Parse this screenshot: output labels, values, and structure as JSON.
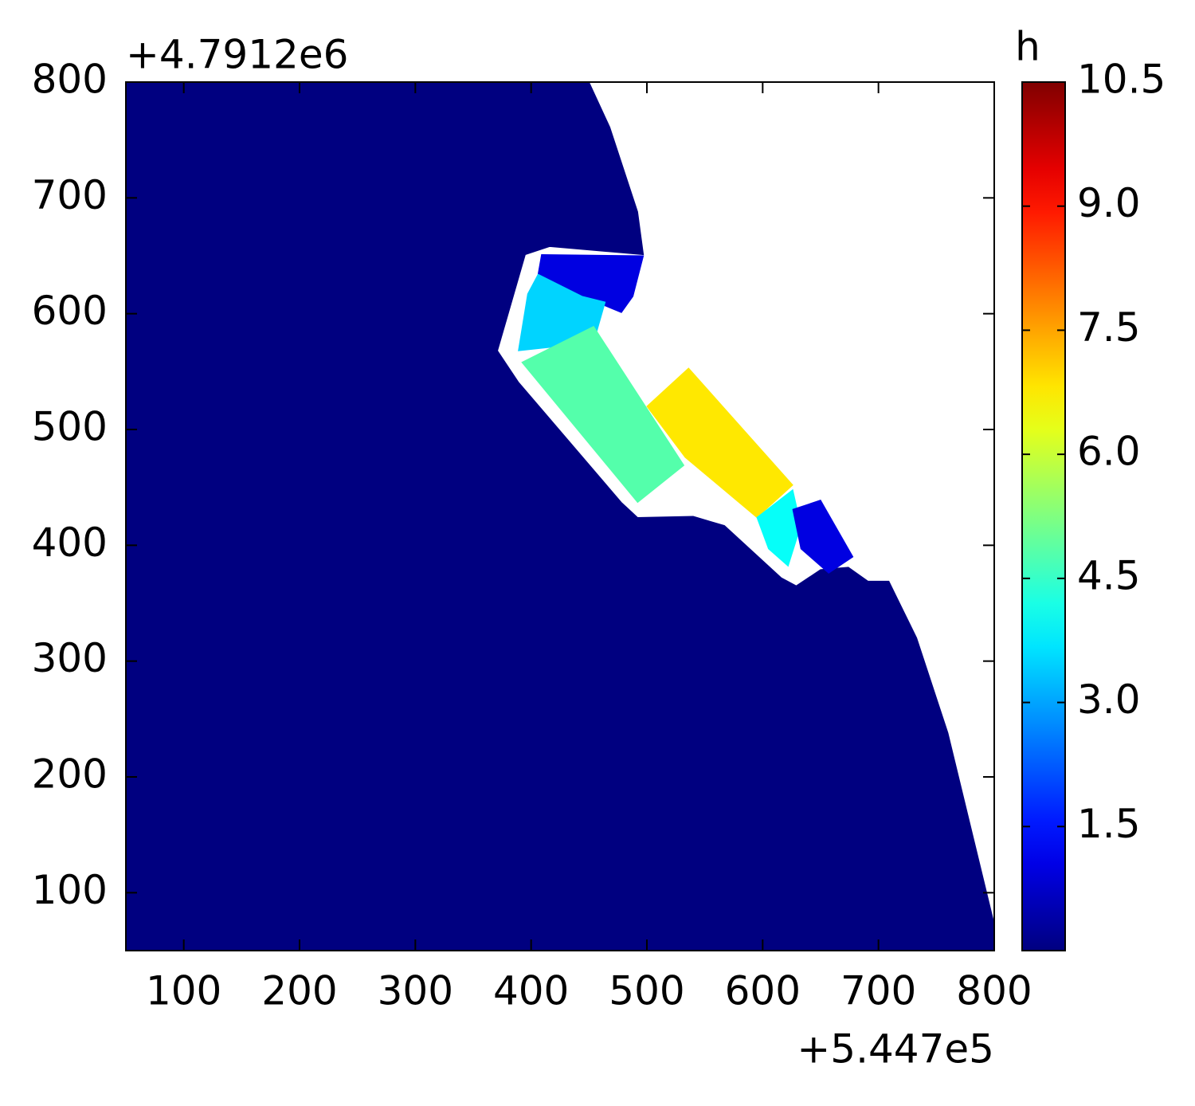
{
  "chart_data": {
    "type": "tripcolor",
    "colormap": "jet",
    "colorbar_label": "h",
    "clim": [
      0,
      10.5
    ],
    "cticks": [
      1.5,
      {
        "value": 3.0,
        "label": "3.0"
      },
      4.5,
      {
        "value": 6.0,
        "label": "6.0"
      },
      7.5,
      {
        "value": 9.0,
        "label": "9.0"
      },
      10.5
    ],
    "xlim": [
      50,
      800
    ],
    "ylim": [
      50,
      800
    ],
    "xticks": [
      100,
      200,
      300,
      400,
      500,
      600,
      700,
      800
    ],
    "yticks": [
      100,
      200,
      300,
      400,
      500,
      600,
      700,
      800
    ],
    "x_offset_label": "+5.447e5",
    "y_offset_label": "+4.7912e6",
    "regions": [
      {
        "value": 0.0,
        "points": [
          [
            50,
            800
          ],
          [
            450,
            800
          ],
          [
            468,
            761
          ],
          [
            492,
            688
          ],
          [
            497,
            651
          ],
          [
            416,
            658
          ],
          [
            395,
            651
          ],
          [
            371,
            568
          ],
          [
            389,
            541
          ],
          [
            478,
            437
          ],
          [
            492,
            424
          ],
          [
            540,
            425
          ],
          [
            567,
            417
          ],
          [
            616,
            372
          ],
          [
            629,
            365
          ],
          [
            650,
            379
          ],
          [
            674,
            381
          ],
          [
            691,
            369
          ],
          [
            709,
            369
          ],
          [
            733,
            320
          ],
          [
            760,
            238
          ],
          [
            800,
            73
          ],
          [
            800,
            50
          ],
          [
            50,
            50
          ]
        ]
      },
      {
        "value": 1.0,
        "points": [
          [
            409,
            651
          ],
          [
            497,
            650
          ],
          [
            488,
            615
          ],
          [
            478,
            601
          ],
          [
            444,
            615
          ],
          [
            406,
            634
          ]
        ]
      },
      {
        "value": 3.5,
        "points": [
          [
            406,
            634
          ],
          [
            444,
            615
          ],
          [
            464,
            610
          ],
          [
            454,
            575
          ],
          [
            389,
            568
          ],
          [
            397,
            617
          ]
        ]
      },
      {
        "value": 4.8,
        "points": [
          [
            392,
            558
          ],
          [
            454,
            589
          ],
          [
            532,
            469
          ],
          [
            492,
            437
          ]
        ]
      },
      {
        "value": 6.8,
        "points": [
          [
            500,
            520
          ],
          [
            536,
            553
          ],
          [
            626,
            452
          ],
          [
            595,
            424
          ],
          [
            533,
            476
          ]
        ]
      },
      {
        "value": 4.0,
        "points": [
          [
            595,
            424
          ],
          [
            626,
            448
          ],
          [
            633,
            417
          ],
          [
            622,
            382
          ],
          [
            605,
            397
          ]
        ]
      },
      {
        "value": 1.0,
        "points": [
          [
            626,
            431
          ],
          [
            650,
            439
          ],
          [
            678,
            390
          ],
          [
            657,
            376
          ],
          [
            633,
            397
          ]
        ]
      }
    ]
  }
}
